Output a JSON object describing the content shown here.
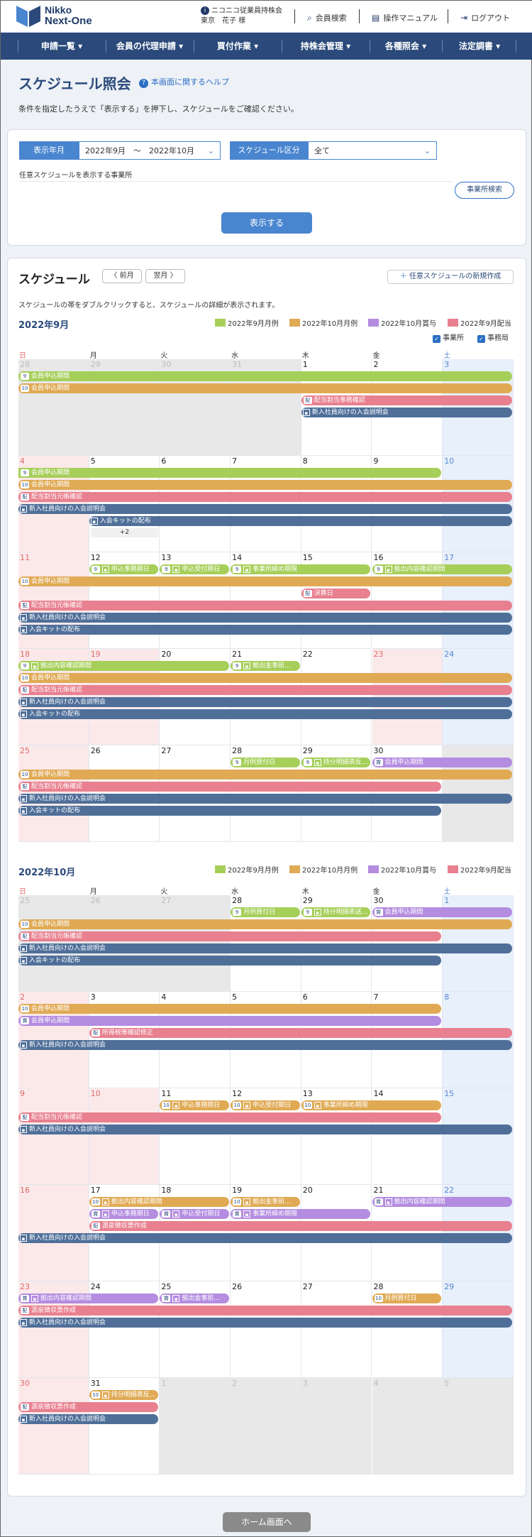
{
  "header": {
    "logo_line1": "Nikko",
    "logo_line2": "Next-One",
    "user_org": "ニコニコ従業員持株会",
    "user_name": "東京　花子 様",
    "links": [
      "会員検索",
      "操作マニュアル",
      "ログアウト"
    ]
  },
  "nav": {
    "items": [
      "申請一覧",
      "会員の代理申請",
      "買付作業",
      "持株会管理",
      "各種照会",
      "法定調書"
    ]
  },
  "page": {
    "title": "スケジュール照会",
    "help": "本画面に関するヘルプ",
    "description": "条件を指定したうえで「表示する」を押下し、スケジュールをご確認ください。"
  },
  "filter": {
    "period_label": "表示年月",
    "period_value": "2022年9月　～　2022年10月",
    "type_label": "スケジュール区分",
    "type_value": "全て",
    "office_label": "任意スケジュールを表示する事業所",
    "office_search": "事業所検索",
    "display_btn": "表示する"
  },
  "schedule": {
    "title": "スケジュール",
    "prev": "〈 前月",
    "next": "翌月 〉",
    "new_btn": "任意スケジュールの新規作成",
    "hint": "スケジュールの帯をダブルクリックすると、スケジュールの詳細が表示されます。",
    "check_office": "事業所",
    "check_hq": "事務局"
  },
  "days": [
    "日",
    "月",
    "火",
    "水",
    "木",
    "金",
    "土"
  ],
  "colors": {
    "green": "#a6cf5a",
    "orange": "#e0aa55",
    "pink": "#e8808f",
    "navy": "#4f6f99",
    "purple": "#b48ce0"
  },
  "sep": {
    "month": "2022年9月",
    "legend": [
      "2022年9月月例",
      "2022年10月月例",
      "2022年10月賞与",
      "2022年9月配当"
    ],
    "dates": [
      [
        "28",
        "29",
        "30",
        "31",
        "1",
        "2",
        "3"
      ],
      [
        "4",
        "5",
        "6",
        "7",
        "8",
        "9",
        "10"
      ],
      [
        "11",
        "12",
        "13",
        "14",
        "15",
        "16",
        "17"
      ],
      [
        "18",
        "19",
        "20",
        "21",
        "22",
        "23",
        "24"
      ],
      [
        "25",
        "26",
        "27",
        "28",
        "29",
        "30",
        ""
      ]
    ]
  },
  "oct": {
    "month": "2022年10月",
    "legend": [
      "2022年9月月例",
      "2022年10月月例",
      "2022年10月賞与",
      "2022年9月配当"
    ],
    "dates": [
      [
        "25",
        "26",
        "27",
        "28",
        "29",
        "30",
        "1"
      ],
      [
        "2",
        "3",
        "4",
        "5",
        "6",
        "7",
        "8"
      ],
      [
        "9",
        "10",
        "11",
        "12",
        "13",
        "14",
        "15"
      ],
      [
        "16",
        "17",
        "18",
        "19",
        "20",
        "21",
        "22"
      ],
      [
        "23",
        "24",
        "25",
        "26",
        "27",
        "28",
        "29"
      ],
      [
        "30",
        "31",
        "1",
        "2",
        "3",
        "4",
        "5"
      ]
    ]
  },
  "events": {
    "apply": "会員申込期間",
    "cfg": "配当割当事務確認",
    "newm": "新入社員向けの入会説明会",
    "kit": "入会キットの配布",
    "cfgp": "配当割当元帳確認",
    "more": "+2",
    "doc": "申込事務期日",
    "doc2": "申込受付期日",
    "fix": "事業所締め期限",
    "sub": "拠出内容確認期間",
    "fin": "決算日",
    "ch1": "拠出金事前...",
    "pay": "月例買付日",
    "dist": "持分明細表反...",
    "dist2": "持分明細表送...",
    "shin": "所得税等確認修正",
    "chk": "拠出内容確認期間",
    "kikan": "源泉徴収票作成"
  },
  "footer": {
    "home": "ホーム画面へ"
  }
}
